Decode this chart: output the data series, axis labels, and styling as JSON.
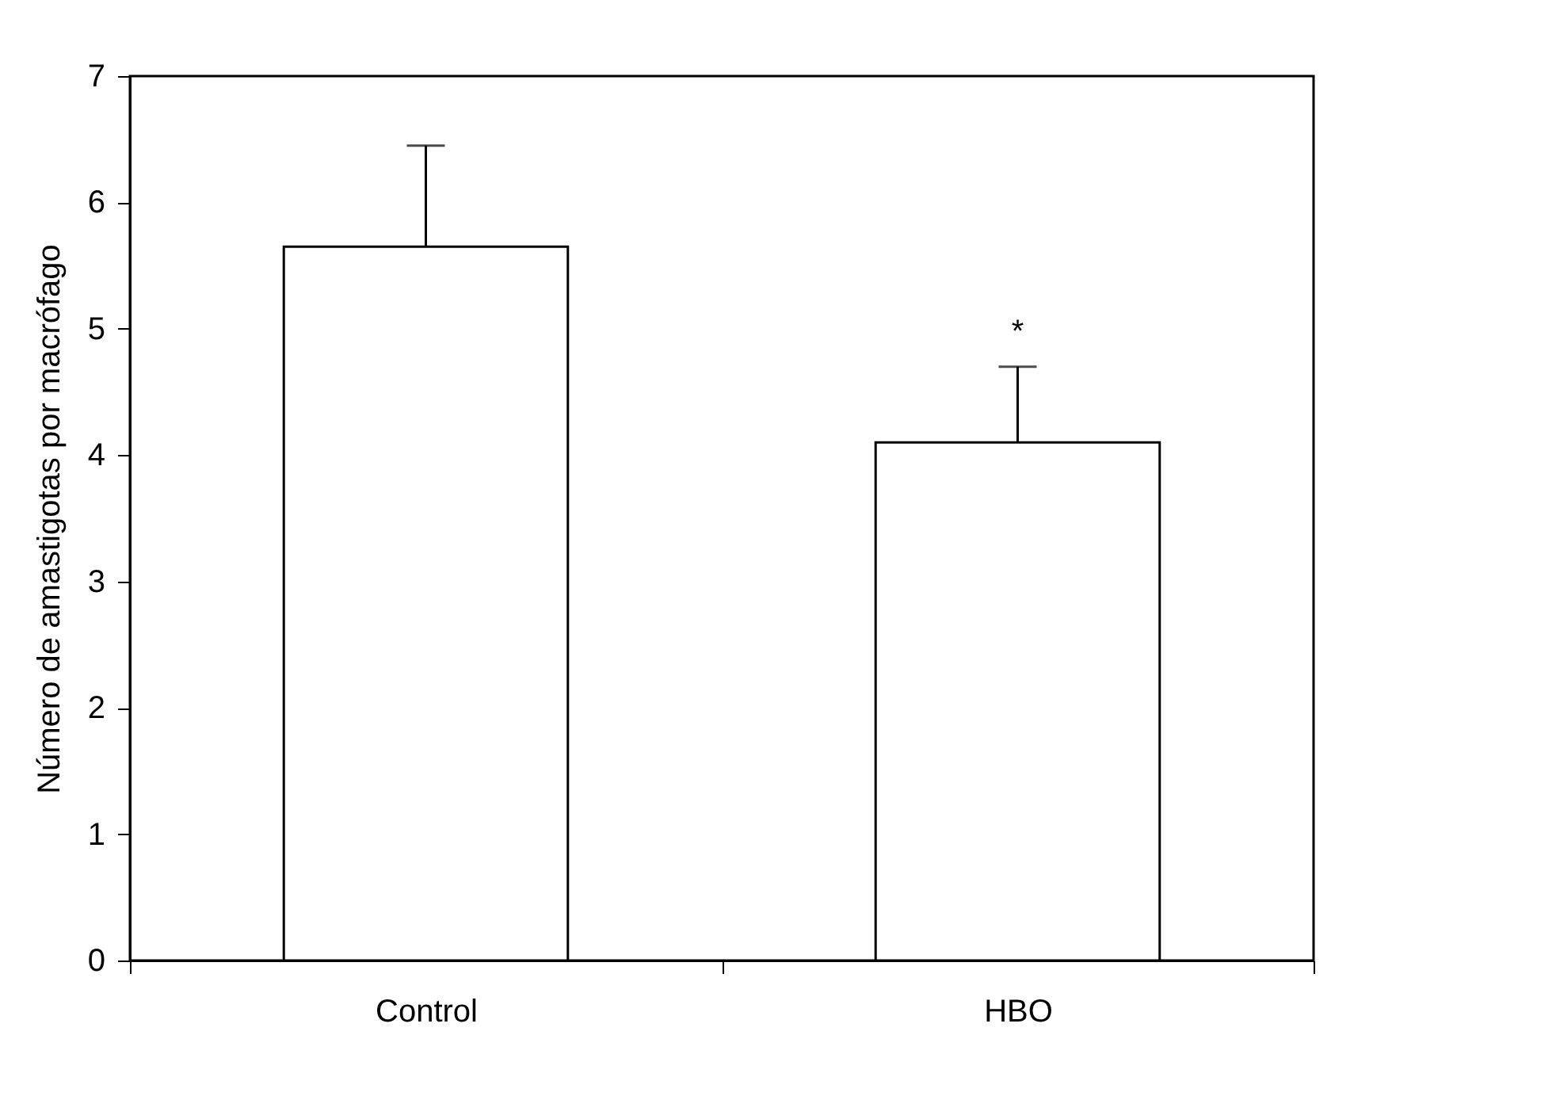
{
  "chart_data": {
    "type": "bar",
    "ylabel": "Número de amastigotas por macrófago",
    "categories": [
      "Control",
      "HBO"
    ],
    "values": [
      5.65,
      4.1
    ],
    "color": "#ffffff",
    "errors": [
      [
        5.65,
        6.45
      ],
      [
        4.1,
        4.7
      ]
    ],
    "ylim": [
      0,
      7
    ],
    "yticks": [
      0,
      1,
      2,
      3,
      4,
      5,
      6,
      7
    ],
    "grid": false,
    "annotations": [
      "*"
    ]
  }
}
